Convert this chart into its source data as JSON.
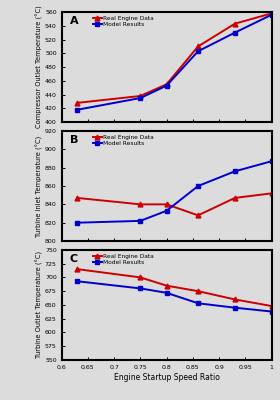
{
  "x": [
    0.63,
    0.75,
    0.8,
    0.86,
    0.93,
    1.0
  ],
  "panel_A": {
    "label": "A",
    "real": [
      428,
      438,
      455,
      510,
      543,
      558
    ],
    "model": [
      418,
      435,
      453,
      503,
      530,
      556
    ],
    "ylabel": "Compressor Outlet Temperature (°C)",
    "ylim": [
      400,
      560
    ],
    "yticks": [
      400,
      420,
      440,
      460,
      480,
      500,
      520,
      540,
      560
    ]
  },
  "panel_B": {
    "label": "B",
    "real": [
      847,
      840,
      840,
      828,
      847,
      852
    ],
    "model": [
      820,
      822,
      833,
      860,
      876,
      887
    ],
    "ylabel": "Turbine Inlet Temperature (°C)",
    "ylim": [
      800,
      920
    ],
    "yticks": [
      800,
      820,
      840,
      860,
      880,
      900,
      920
    ]
  },
  "panel_C": {
    "label": "C",
    "real": [
      715,
      700,
      685,
      675,
      660,
      648
    ],
    "model": [
      693,
      680,
      672,
      653,
      645,
      638
    ],
    "ylabel": "Turbine Outlet Temperature (°C)",
    "ylim": [
      550,
      750
    ],
    "yticks": [
      550,
      575,
      600,
      625,
      650,
      675,
      700,
      725,
      750
    ]
  },
  "xlabel": "Engine Startup Speed Ratio",
  "xlim": [
    0.6,
    1.0
  ],
  "xticks": [
    0.6,
    0.65,
    0.7,
    0.75,
    0.8,
    0.85,
    0.9,
    0.95,
    1.0
  ],
  "xticklabels": [
    "0.6",
    "0.65",
    "0.7",
    "0.75",
    "0.8",
    "0.85",
    "0.9",
    "0.95",
    "1"
  ],
  "real_color": "#CC0000",
  "model_color": "#0000CC",
  "real_label": "Real Engine Data",
  "model_label": "Model Results",
  "real_marker": "^",
  "model_marker": "s",
  "linewidth": 1.4,
  "markersize": 3.5,
  "bg_color": "#DCDCDC"
}
